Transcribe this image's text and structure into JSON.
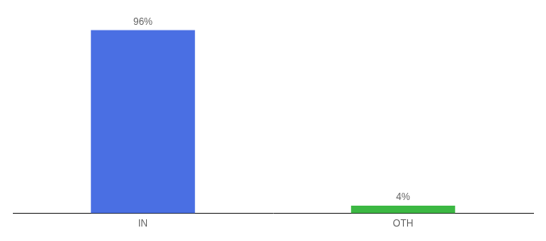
{
  "chart_data": {
    "type": "bar",
    "categories": [
      "IN",
      "OTH"
    ],
    "values": [
      96,
      4
    ],
    "value_labels": [
      "96%",
      "4%"
    ],
    "data_labels": true,
    "colors": [
      "#4a6fe3",
      "#3cb843"
    ],
    "ylim": [
      0,
      100
    ],
    "grid": false,
    "tick_labels": "x"
  }
}
